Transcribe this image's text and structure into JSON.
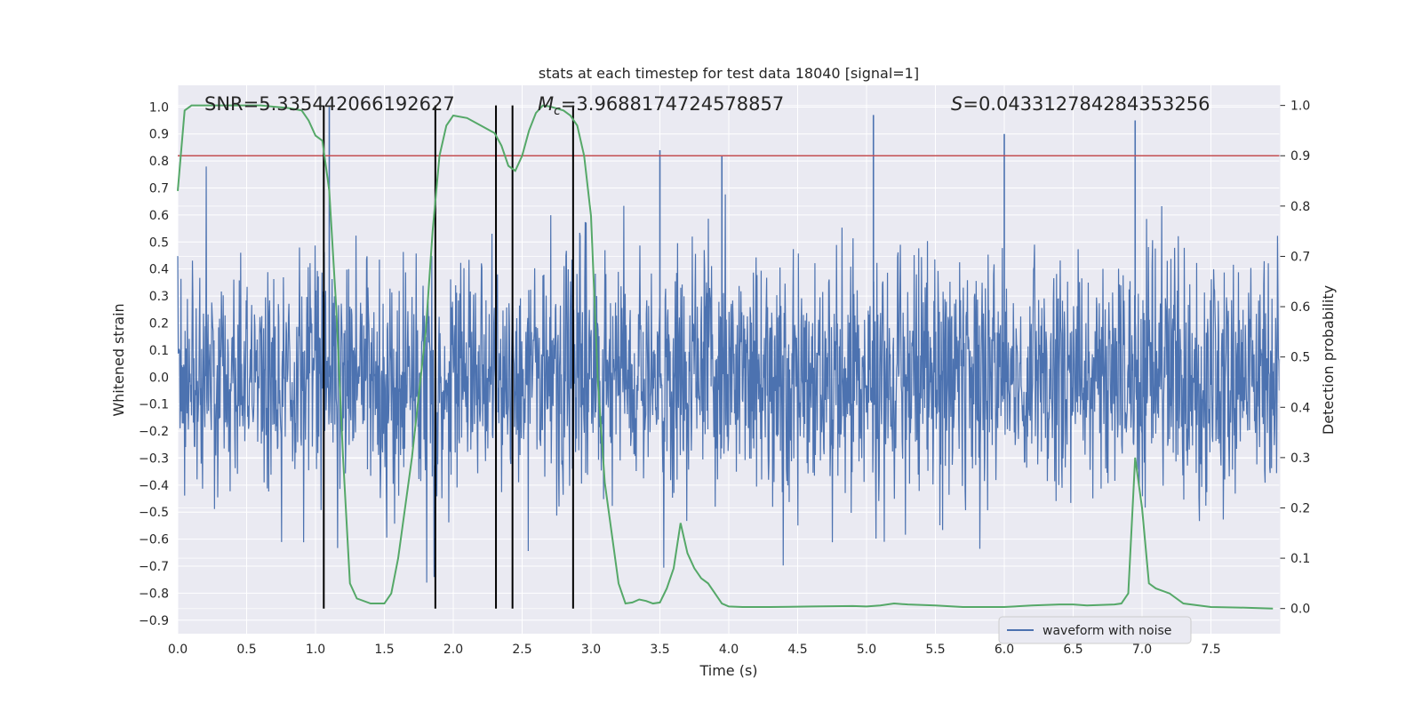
{
  "chart_data": {
    "type": "line",
    "title": "stats at each timestep for test data 18040 [signal=1]",
    "xlabel": "Time (s)",
    "ylabel_left": "Whitened strain",
    "ylabel_right": "Detection probability",
    "xlim": [
      0,
      8.0
    ],
    "ylim_left": [
      -0.95,
      1.08
    ],
    "ylim_right": [
      -0.05,
      1.04
    ],
    "x_ticks": [
      "0.0",
      "0.5",
      "1.0",
      "1.5",
      "2.0",
      "2.5",
      "3.0",
      "3.5",
      "4.0",
      "4.5",
      "5.0",
      "5.5",
      "6.0",
      "6.5",
      "7.0",
      "7.5"
    ],
    "y_ticks_left": [
      "1.0",
      "0.9",
      "0.8",
      "0.7",
      "0.6",
      "0.5",
      "0.4",
      "0.3",
      "0.2",
      "0.1",
      "0.0",
      "-0.1",
      "-0.2",
      "-0.3",
      "-0.4",
      "-0.5",
      "-0.6",
      "-0.7",
      "-0.8",
      "-0.9"
    ],
    "y_ticks_right": [
      "1.0",
      "0.9",
      "0.8",
      "0.7",
      "0.6",
      "0.5",
      "0.4",
      "0.3",
      "0.2",
      "0.1",
      "0.0"
    ],
    "grid": true,
    "legend_position": "bottom-right",
    "annotations": {
      "snr": "SNR=5.335442066192627",
      "mc_symbol": "M",
      "mc_sub": "c",
      "mc_value": "=3.9688174724578857",
      "s_symbol": "S",
      "s_value": "=0.043312784284353256"
    },
    "series": [
      {
        "name": "waveform with noise",
        "color": "#4c72b0",
        "typical_amplitude": 0.3,
        "peak_spikes": [
          {
            "x": 1.1,
            "y": 1.0
          },
          {
            "x": 3.5,
            "y": 0.84
          },
          {
            "x": 3.95,
            "y": 0.82
          },
          {
            "x": 5.05,
            "y": 0.97
          },
          {
            "x": 6.0,
            "y": 0.9
          },
          {
            "x": 6.95,
            "y": 0.95
          }
        ]
      },
      {
        "name": "",
        "color": "#55a868",
        "axis": "right",
        "x": [
          0.0,
          0.05,
          0.1,
          0.2,
          0.4,
          0.6,
          0.8,
          0.9,
          0.95,
          1.0,
          1.05,
          1.1,
          1.15,
          1.2,
          1.25,
          1.3,
          1.4,
          1.5,
          1.55,
          1.6,
          1.7,
          1.8,
          1.85,
          1.9,
          1.95,
          2.0,
          2.1,
          2.2,
          2.3,
          2.35,
          2.4,
          2.45,
          2.5,
          2.55,
          2.6,
          2.65,
          2.7,
          2.8,
          2.85,
          2.9,
          2.95,
          3.0,
          3.05,
          3.1,
          3.2,
          3.25,
          3.3,
          3.35,
          3.4,
          3.45,
          3.5,
          3.55,
          3.6,
          3.65,
          3.7,
          3.75,
          3.8,
          3.85,
          3.9,
          3.95,
          4.0,
          4.1,
          4.3,
          4.6,
          4.9,
          5.0,
          5.1,
          5.2,
          5.3,
          5.5,
          5.7,
          6.0,
          6.2,
          6.4,
          6.5,
          6.6,
          6.8,
          6.85,
          6.9,
          6.95,
          7.0,
          7.05,
          7.1,
          7.2,
          7.3,
          7.5,
          7.7,
          7.95
        ],
        "y": [
          0.83,
          0.99,
          1.0,
          1.0,
          1.0,
          1.0,
          0.995,
          0.99,
          0.97,
          0.94,
          0.93,
          0.83,
          0.6,
          0.3,
          0.05,
          0.02,
          0.01,
          0.01,
          0.03,
          0.1,
          0.3,
          0.55,
          0.75,
          0.9,
          0.96,
          0.98,
          0.975,
          0.96,
          0.945,
          0.92,
          0.88,
          0.87,
          0.9,
          0.95,
          0.985,
          1.0,
          0.998,
          0.99,
          0.98,
          0.96,
          0.9,
          0.78,
          0.45,
          0.25,
          0.05,
          0.01,
          0.012,
          0.018,
          0.015,
          0.01,
          0.012,
          0.04,
          0.08,
          0.17,
          0.11,
          0.08,
          0.06,
          0.05,
          0.03,
          0.01,
          0.004,
          0.003,
          0.003,
          0.004,
          0.005,
          0.004,
          0.006,
          0.01,
          0.008,
          0.006,
          0.003,
          0.003,
          0.006,
          0.008,
          0.008,
          0.006,
          0.008,
          0.01,
          0.03,
          0.3,
          0.2,
          0.05,
          0.04,
          0.03,
          0.01,
          0.003,
          0.002,
          0.0
        ]
      },
      {
        "name": "",
        "color": "#c44e52",
        "axis": "right",
        "type": "hline",
        "y": 0.9
      }
    ],
    "vertical_lines_x": [
      1.06,
      1.87,
      2.31,
      2.43,
      2.87
    ]
  }
}
